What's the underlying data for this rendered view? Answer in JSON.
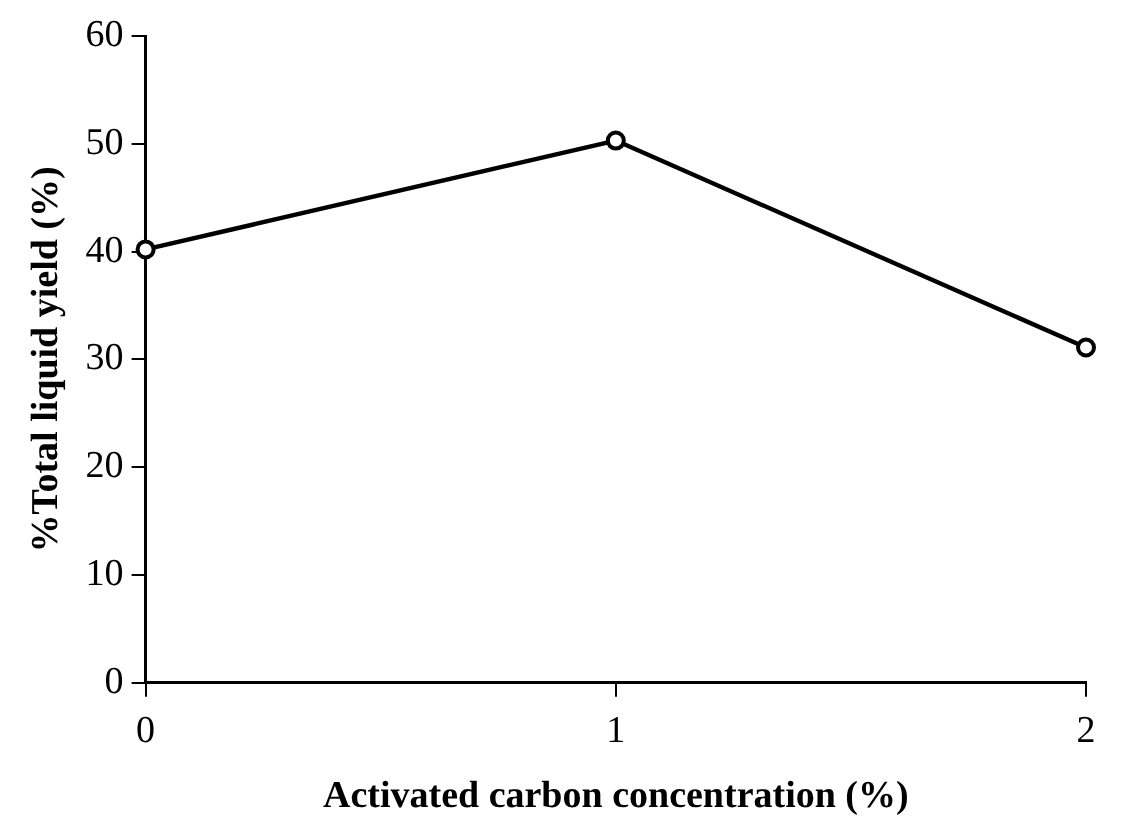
{
  "chart_data": {
    "type": "line",
    "xlabel": "Activated carbon concentration (%)",
    "ylabel": "%Total liquid yield (%)",
    "x": [
      0,
      1,
      2
    ],
    "series": [
      {
        "color": "#000000",
        "values": [
          40.2,
          50.3,
          31.1
        ]
      }
    ],
    "xlim": [
      0,
      2
    ],
    "xticks": [
      0,
      1,
      2
    ],
    "ylim": [
      0,
      60
    ],
    "yticks": [
      0,
      10,
      20,
      30,
      40,
      50,
      60
    ],
    "grid": false,
    "legend": false,
    "marker": "circle",
    "line_style": "solid"
  }
}
